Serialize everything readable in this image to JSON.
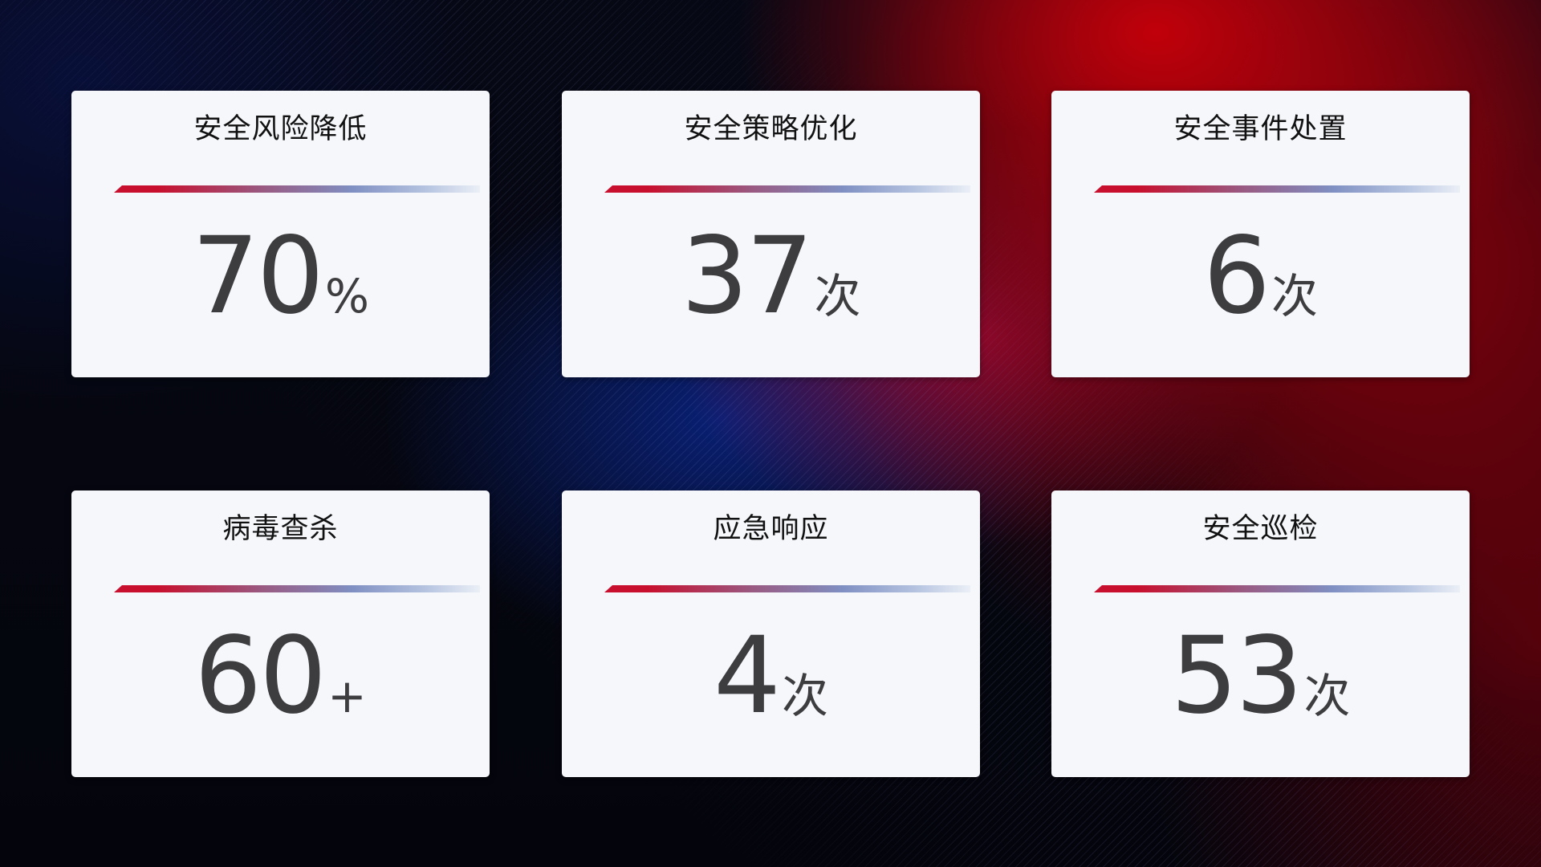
{
  "cards": [
    {
      "title": "安全风险降低",
      "value": "70",
      "unit": "%"
    },
    {
      "title": "安全策略优化",
      "value": "37",
      "unit": "次"
    },
    {
      "title": "安全事件处置",
      "value": "6",
      "unit": "次"
    },
    {
      "title": "病毒查杀",
      "value": "60",
      "unit": "+"
    },
    {
      "title": "应急响应",
      "value": "4",
      "unit": "次"
    },
    {
      "title": "安全巡检",
      "value": "53",
      "unit": "次"
    }
  ],
  "colors": {
    "accent_red": "#c8102e",
    "accent_blue": "#7f8fc2",
    "card_bg": "#f5f7fb",
    "value_text": "#3d3d3f"
  }
}
